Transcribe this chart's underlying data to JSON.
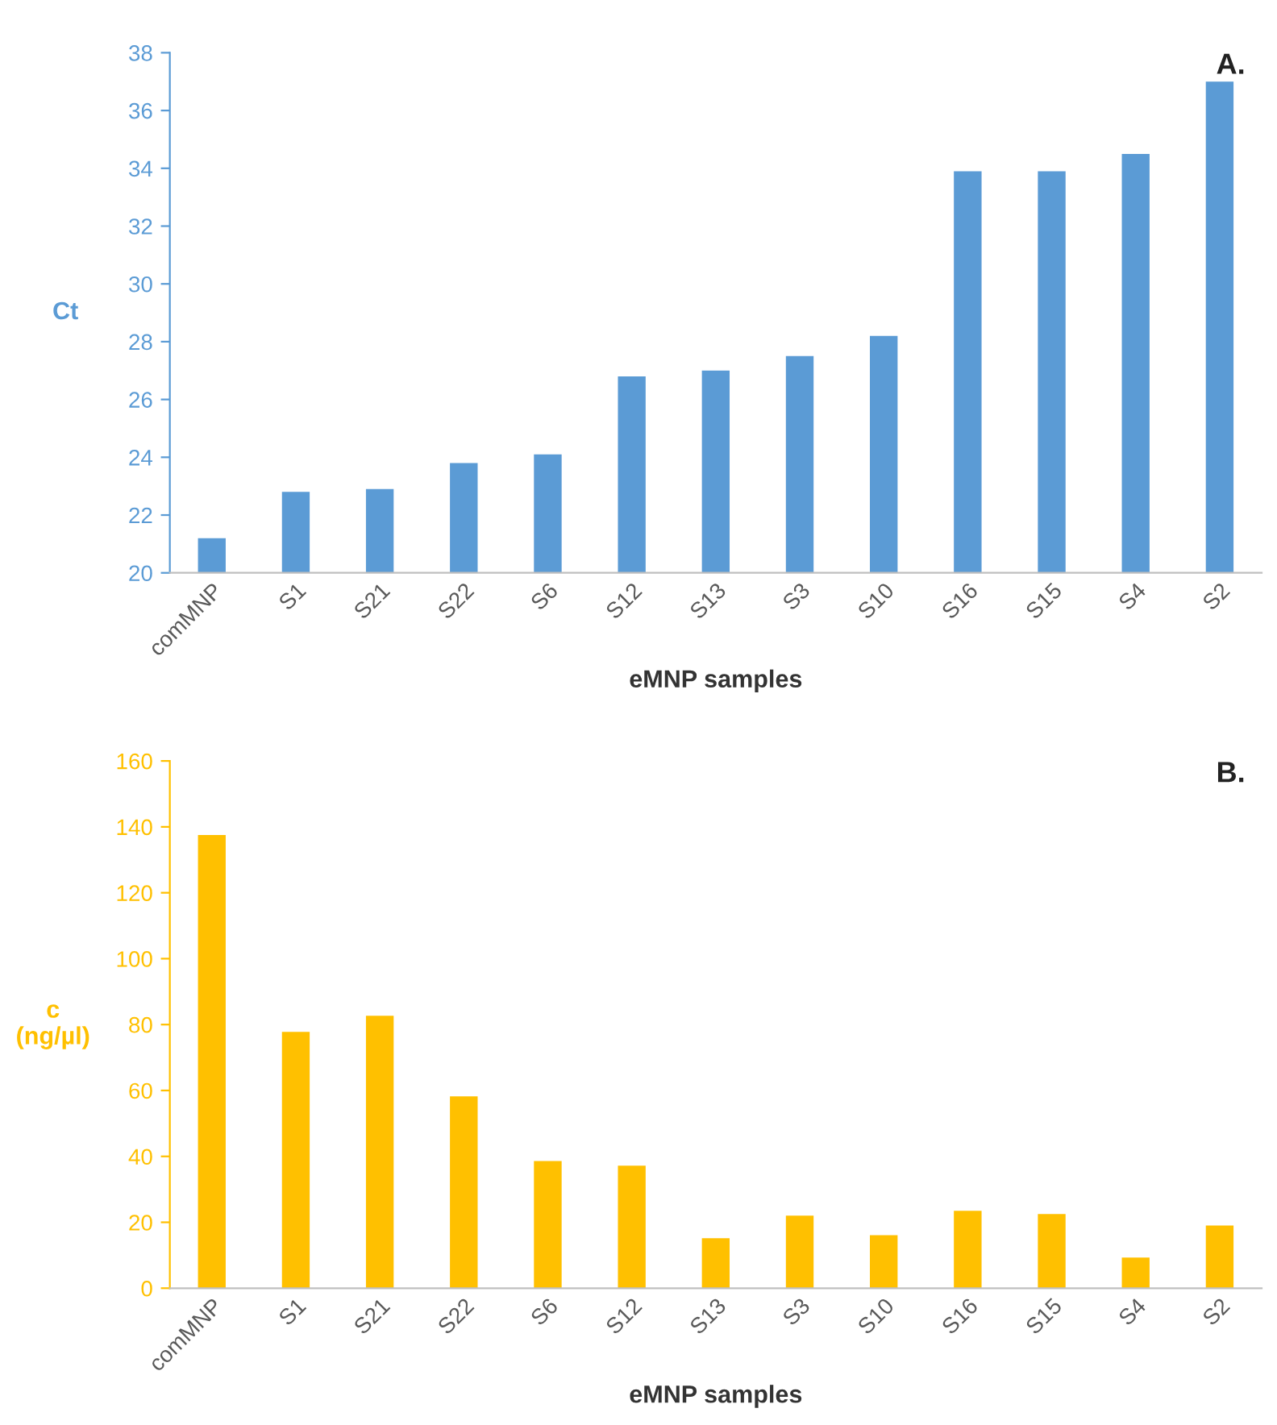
{
  "chart_data": [
    {
      "type": "bar",
      "categories": [
        "comMNP",
        "S1",
        "S21",
        "S22",
        "S6",
        "S12",
        "S13",
        "S3",
        "S10",
        "S16",
        "S15",
        "S4",
        "S2"
      ],
      "values": [
        21.2,
        22.8,
        22.9,
        23.8,
        24.1,
        26.8,
        27.0,
        27.5,
        28.2,
        33.9,
        33.9,
        34.5,
        37.0
      ],
      "color": "#5b9bd5",
      "xlabel": "eMNP samples",
      "ylabel": "Ct",
      "ylim": [
        20,
        38
      ],
      "yticks": [
        20,
        22,
        24,
        26,
        28,
        30,
        32,
        34,
        36,
        38
      ],
      "grid": false,
      "legend": false,
      "annotations": [
        "A."
      ]
    },
    {
      "type": "bar",
      "categories": [
        "comMNP",
        "S1",
        "S21",
        "S22",
        "S6",
        "S12",
        "S13",
        "S3",
        "S10",
        "S16",
        "S15",
        "S4",
        "S2"
      ],
      "values": [
        137.5,
        77.8,
        82.7,
        58.2,
        38.6,
        37.2,
        15.2,
        22.0,
        16.1,
        23.5,
        22.5,
        9.3,
        19.0
      ],
      "color": "#ffc000",
      "xlabel": "eMNP samples",
      "ylabel": "c\n(ng/µl)",
      "ylim": [
        0,
        160
      ],
      "yticks": [
        0,
        20,
        40,
        60,
        80,
        100,
        120,
        140,
        160
      ],
      "grid": false,
      "legend": false,
      "annotations": [
        "B."
      ]
    }
  ]
}
